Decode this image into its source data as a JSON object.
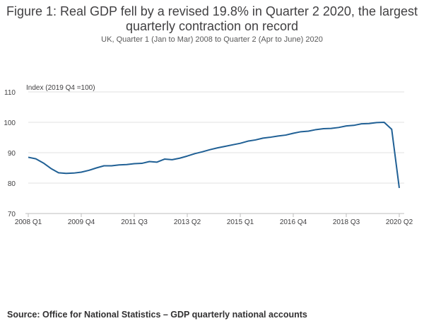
{
  "figure": {
    "title_line1": "Figure 1: Real GDP fell by a revised 19.8% in Quarter 2 2020, the largest",
    "title_line2": "quarterly contraction on record",
    "subtitle": "UK, Quarter 1 (Jan to Mar) 2008 to Quarter 2 (Apr to June) 2020",
    "source": "Source: Office for National Statistics – GDP quarterly national accounts"
  },
  "chart_data": {
    "type": "line",
    "title": "Figure 1: Real GDP fell by a revised 19.8% in Quarter 2 2020, the largest quarterly contraction on record",
    "ylabel": "Index (2019 Q4 =100)",
    "xlabel": "",
    "ylim": [
      70,
      110
    ],
    "yticks": [
      70,
      80,
      90,
      100,
      110
    ],
    "xtick_labels": [
      "2008 Q1",
      "2009 Q4",
      "2011 Q3",
      "2013 Q2",
      "2015 Q1",
      "2016 Q4",
      "2018 Q3",
      "2020 Q2"
    ],
    "xtick_indices": [
      0,
      7,
      14,
      21,
      28,
      35,
      42,
      49
    ],
    "grid": true,
    "series": [
      {
        "name": "Real GDP",
        "color": "#206095",
        "values": [
          88.5,
          88.0,
          86.6,
          84.8,
          83.4,
          83.2,
          83.3,
          83.6,
          84.2,
          85.0,
          85.7,
          85.7,
          86.0,
          86.1,
          86.4,
          86.5,
          87.1,
          86.9,
          87.9,
          87.7,
          88.2,
          88.9,
          89.7,
          90.3,
          91.0,
          91.6,
          92.1,
          92.6,
          93.1,
          93.8,
          94.2,
          94.8,
          95.1,
          95.5,
          95.8,
          96.4,
          96.9,
          97.1,
          97.6,
          97.9,
          98.0,
          98.3,
          98.8,
          99.0,
          99.5,
          99.6,
          99.9,
          100.0,
          97.7,
          78.4
        ]
      }
    ]
  }
}
